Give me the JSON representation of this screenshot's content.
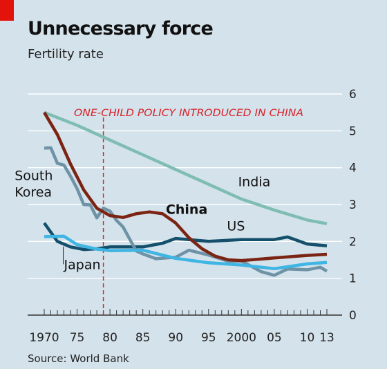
{
  "header": {
    "title": "Unnecessary force",
    "subtitle": "Fertility rate"
  },
  "footer": {
    "source": "Source: World Bank"
  },
  "colors": {
    "background": "#d4e2eb",
    "gridline": "#ffffff",
    "axis": "#333333",
    "brand_red": "#e3120b",
    "annotation_red": "#d9232b",
    "china": "#7b2413",
    "india": "#7fbdb3",
    "us": "#14506b",
    "south_korea": "#6e93a6",
    "japan": "#3fb5e3"
  },
  "chart_data": {
    "type": "line",
    "x_tick_labels": [
      "1970",
      "75",
      "80",
      "85",
      "90",
      "95",
      "2000",
      "05",
      "10",
      "13"
    ],
    "x_tick_values": [
      1970,
      1975,
      1980,
      1985,
      1990,
      1995,
      2000,
      2005,
      2010,
      2013
    ],
    "xlim": [
      1970,
      2013
    ],
    "y_tick_labels": [
      "0",
      "1",
      "2",
      "3",
      "4",
      "5",
      "6"
    ],
    "y_tick_values": [
      0,
      1,
      2,
      3,
      4,
      5,
      6
    ],
    "ylim": [
      0,
      6
    ],
    "y_axis_position": "right",
    "grid": true,
    "annotation": {
      "text": "ONE-CHILD POLICY INTRODUCED IN CHINA",
      "x": 1979
    },
    "series": [
      {
        "name": "India",
        "color_key": "india",
        "x": [
          1970,
          1975,
          1980,
          1985,
          1990,
          1995,
          2000,
          2005,
          2010,
          2013
        ],
        "values": [
          5.5,
          5.15,
          4.75,
          4.35,
          3.95,
          3.55,
          3.15,
          2.85,
          2.58,
          2.48
        ]
      },
      {
        "name": "China",
        "color_key": "china",
        "x": [
          1970,
          1972,
          1974,
          1976,
          1978,
          1980,
          1982,
          1984,
          1986,
          1988,
          1990,
          1992,
          1994,
          1996,
          1998,
          2000,
          2005,
          2010,
          2013
        ],
        "values": [
          5.5,
          4.9,
          4.1,
          3.4,
          2.9,
          2.7,
          2.65,
          2.75,
          2.8,
          2.75,
          2.5,
          2.1,
          1.8,
          1.6,
          1.5,
          1.48,
          1.55,
          1.62,
          1.65
        ]
      },
      {
        "name": "US",
        "color_key": "us",
        "x": [
          1970,
          1972,
          1974,
          1976,
          1978,
          1980,
          1985,
          1988,
          1990,
          1995,
          2000,
          2005,
          2007,
          2010,
          2013
        ],
        "values": [
          2.5,
          2.0,
          1.85,
          1.78,
          1.8,
          1.85,
          1.85,
          1.95,
          2.08,
          2.0,
          2.05,
          2.05,
          2.12,
          1.93,
          1.88
        ]
      },
      {
        "name": "South Korea",
        "color_key": "south_korea",
        "x": [
          1970,
          1971,
          1972,
          1973,
          1974,
          1975,
          1976,
          1977,
          1978,
          1979,
          1980,
          1981,
          1982,
          1983,
          1984,
          1985,
          1987,
          1990,
          1992,
          1995,
          1998,
          2000,
          2003,
          2005,
          2007,
          2010,
          2012,
          2013
        ],
        "values": [
          4.53,
          4.54,
          4.12,
          4.07,
          3.77,
          3.43,
          3.0,
          2.99,
          2.64,
          2.9,
          2.82,
          2.57,
          2.39,
          2.06,
          1.74,
          1.66,
          1.53,
          1.57,
          1.76,
          1.63,
          1.46,
          1.47,
          1.18,
          1.08,
          1.25,
          1.23,
          1.3,
          1.19
        ]
      },
      {
        "name": "Japan",
        "color_key": "japan",
        "x": [
          1970,
          1973,
          1975,
          1978,
          1980,
          1985,
          1990,
          1995,
          2000,
          2005,
          2010,
          2013
        ],
        "values": [
          2.13,
          2.14,
          1.91,
          1.79,
          1.75,
          1.76,
          1.54,
          1.42,
          1.36,
          1.26,
          1.39,
          1.43
        ]
      }
    ],
    "labels": [
      {
        "text": "South",
        "x": 1965.5,
        "y": 3.67,
        "key": "south-korea-label-1"
      },
      {
        "text": "Korea",
        "x": 1965.5,
        "y": 3.22,
        "key": "south-korea-label-2"
      },
      {
        "text": "India",
        "x": 1999.5,
        "y": 3.5,
        "key": "india-label"
      },
      {
        "text": "China",
        "x": 1988.5,
        "y": 2.75,
        "key": "china-label",
        "bold": true
      },
      {
        "text": "US",
        "x": 1997.8,
        "y": 2.3,
        "key": "us-label"
      },
      {
        "text": "Japan",
        "x": 1973,
        "y": 1.25,
        "key": "japan-label"
      }
    ]
  }
}
